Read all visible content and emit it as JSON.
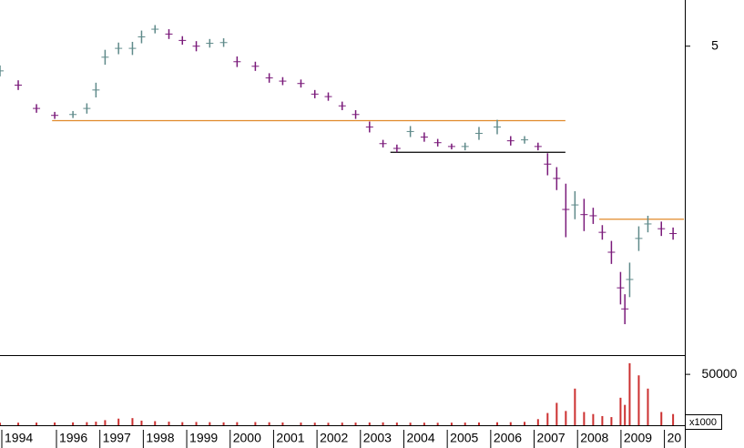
{
  "chart_data": {
    "type": "ohlc",
    "x": [
      1994.7,
      1995.12,
      1995.54,
      1995.96,
      1996.38,
      1996.7,
      1996.91,
      1997.12,
      1997.43,
      1997.75,
      1997.96,
      1998.27,
      1998.59,
      1998.9,
      1999.22,
      1999.53,
      1999.85,
      2000.16,
      2000.58,
      2000.9,
      2001.21,
      2001.63,
      2001.95,
      2002.26,
      2002.58,
      2002.89,
      2003.21,
      2003.52,
      2003.84,
      2004.15,
      2004.47,
      2004.78,
      2005.1,
      2005.41,
      2005.73,
      2006.15,
      2006.46,
      2006.78,
      2007.09,
      2007.31,
      2007.52,
      2007.73,
      2007.94,
      2008.15,
      2008.36,
      2008.57,
      2008.78,
      2008.99,
      2009.09,
      2009.2,
      2009.41,
      2009.62,
      2009.93,
      2010.2
    ],
    "high": [
      4.74,
      4.55,
      4.26,
      4.17,
      4.18,
      4.27,
      4.52,
      4.95,
      5.05,
      5.06,
      5.22,
      5.3,
      5.24,
      5.14,
      5.07,
      5.1,
      5.11,
      4.86,
      4.79,
      4.64,
      4.59,
      4.56,
      4.43,
      4.4,
      4.29,
      4.19,
      4.06,
      3.86,
      3.81,
      4.01,
      3.94,
      3.87,
      3.82,
      3.83,
      4.0,
      4.08,
      3.9,
      3.9,
      3.83,
      3.72,
      3.58,
      3.42,
      3.35,
      3.28,
      3.2,
      3.05,
      2.92,
      2.68,
      2.52,
      2.75,
      3.04,
      3.13,
      3.08,
      3.03
    ],
    "low": [
      4.6,
      4.43,
      4.16,
      4.09,
      4.1,
      4.15,
      4.34,
      4.75,
      4.89,
      4.88,
      5.04,
      5.18,
      5.1,
      5.02,
      4.93,
      4.98,
      4.99,
      4.72,
      4.67,
      4.52,
      4.49,
      4.46,
      4.33,
      4.3,
      4.19,
      4.09,
      3.94,
      3.78,
      3.73,
      3.89,
      3.84,
      3.79,
      3.76,
      3.75,
      3.86,
      3.92,
      3.8,
      3.82,
      3.75,
      3.5,
      3.36,
      2.95,
      3.1,
      3.0,
      3.06,
      2.93,
      2.74,
      2.45,
      2.32,
      2.5,
      2.84,
      2.99,
      2.96,
      2.93
    ],
    "xlim": [
      1994.7,
      2010.47
    ],
    "xticks": [
      {
        "value": 1994.7,
        "label": "1994"
      },
      1996,
      1997,
      1998,
      1999,
      2000,
      2001,
      2002,
      2003,
      2004,
      2005,
      2006,
      2007,
      2008,
      2009,
      {
        "value": 2010,
        "label": "20"
      }
    ],
    "ylim": [
      2.13,
      5.68
    ],
    "yticks": [
      5
    ],
    "log_scale": true,
    "colors": {
      "up": "#5f8a8a",
      "down": "#7a1a7a"
    },
    "lines": [
      {
        "color": "#e08a2a",
        "x": [
          1995.9,
          2007.72
        ],
        "value": 4.07
      },
      {
        "color": "#000000",
        "x": [
          2003.69,
          2007.72
        ],
        "value": 3.73
      },
      {
        "color": "#e08a2a",
        "x": [
          2008.5,
          2010.45
        ],
        "value": 3.1
      }
    ],
    "volume": {
      "values": [
        2500,
        2500,
        2600,
        2700,
        2800,
        3000,
        3500,
        5000,
        6500,
        7000,
        4500,
        4000,
        3500,
        3000,
        3200,
        3000,
        2800,
        3000,
        3100,
        2900,
        2700,
        2600,
        2500,
        2400,
        2500,
        2600,
        2700,
        2800,
        2600,
        2500,
        2500,
        2400,
        2500,
        2600,
        2700,
        2900,
        3000,
        3300,
        6000,
        12000,
        22000,
        14000,
        36000,
        13000,
        11000,
        9000,
        8000,
        27000,
        20000,
        61000,
        49000,
        36000,
        13000,
        11000
      ],
      "ylim": [
        0,
        68000
      ],
      "yticks": [
        50000
      ],
      "color": "#cc3030",
      "unit_label": "x1000"
    }
  }
}
